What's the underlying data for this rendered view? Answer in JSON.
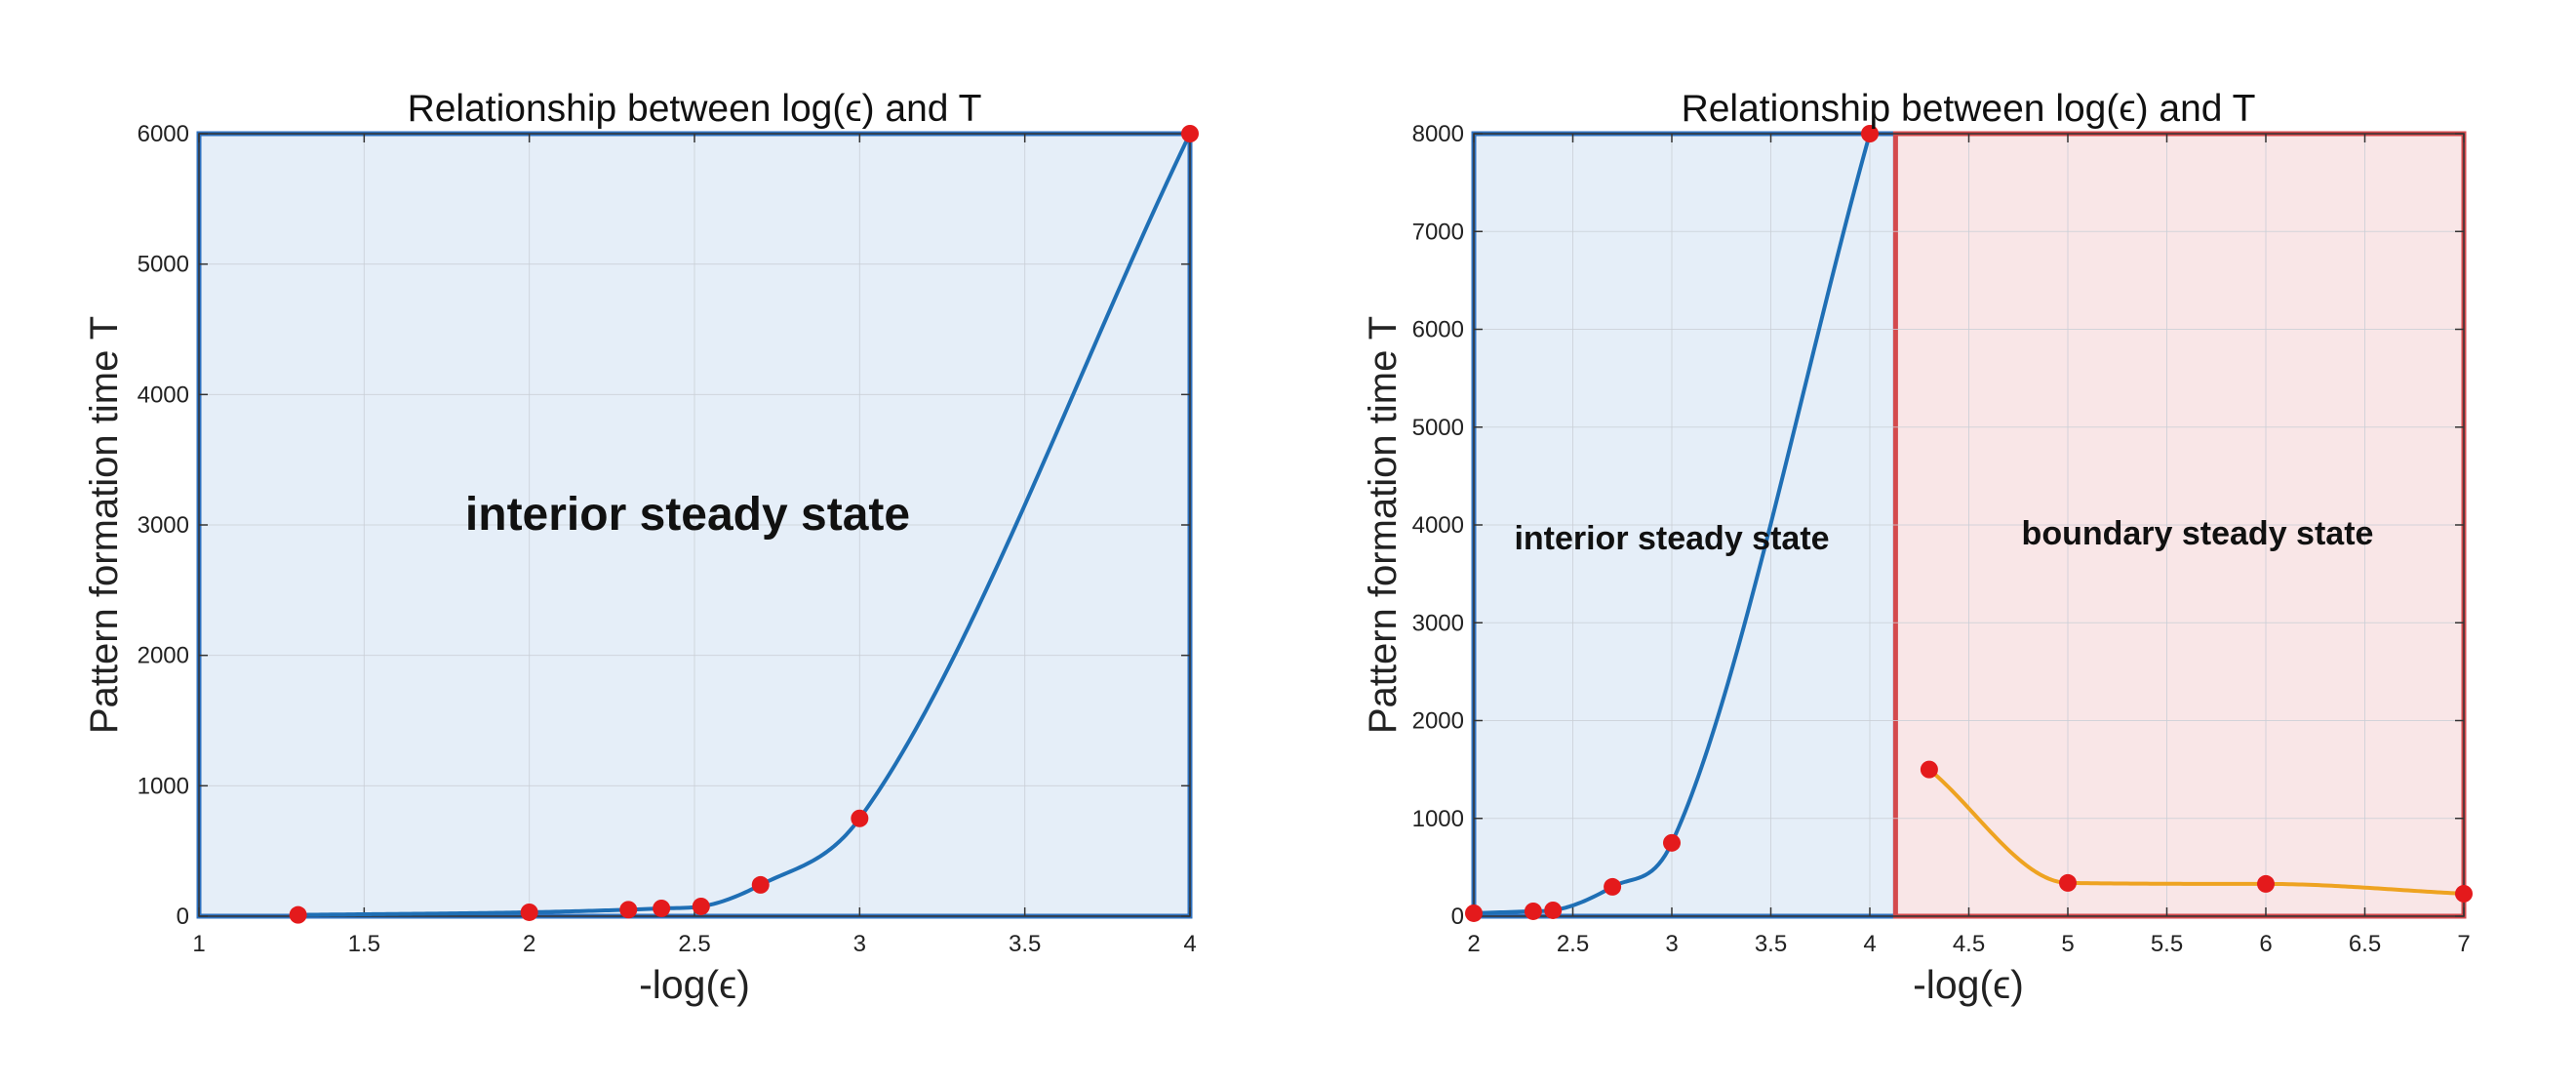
{
  "chart_data": [
    {
      "type": "line",
      "title": "Relationship between log(ϵ) and T",
      "xlabel": "-log(ϵ)",
      "ylabel": "Pattern formation time  T",
      "xlim": [
        1,
        4
      ],
      "ylim": [
        0,
        6000
      ],
      "xticks": [
        1,
        1.5,
        2,
        2.5,
        3,
        3.5,
        4
      ],
      "xtick_labels": [
        "1",
        "1.5",
        "2",
        "2.5",
        "3",
        "3.5",
        "4"
      ],
      "yticks": [
        0,
        1000,
        2000,
        3000,
        4000,
        5000,
        6000
      ],
      "ytick_labels": [
        "0",
        "1000",
        "2000",
        "3000",
        "4000",
        "5000",
        "6000"
      ],
      "grid": true,
      "series": [
        {
          "color": "#1f6fb5",
          "x": [
            1.3,
            2,
            2.3,
            2.4,
            2.52,
            2.7,
            3,
            4
          ],
          "y": [
            10,
            30,
            50,
            60,
            75,
            240,
            750,
            6000
          ]
        }
      ],
      "regions": [
        {
          "label": "interior steady state",
          "x": [
            1,
            4
          ],
          "y": [
            0,
            6000
          ],
          "fill": "#e4edf8",
          "edge": "#2f72c0"
        }
      ],
      "marker_color": "#e41a1c"
    },
    {
      "type": "line",
      "title": "Relationship between log(ϵ) and T",
      "xlabel": "-log(ϵ)",
      "ylabel": "Pattern formation time  T",
      "xlim": [
        2,
        7
      ],
      "ylim": [
        0,
        8000
      ],
      "xticks": [
        2,
        2.5,
        3,
        3.5,
        4,
        4.5,
        5,
        5.5,
        6,
        6.5,
        7
      ],
      "xtick_labels": [
        "2",
        "2.5",
        "3",
        "3.5",
        "4",
        "4.5",
        "5",
        "5.5",
        "6",
        "6.5",
        "7"
      ],
      "yticks": [
        0,
        1000,
        2000,
        3000,
        4000,
        5000,
        6000,
        7000,
        8000
      ],
      "ytick_labels": [
        "0",
        "1000",
        "2000",
        "3000",
        "4000",
        "5000",
        "6000",
        "7000",
        "8000"
      ],
      "grid": true,
      "series": [
        {
          "color": "#1f6fb5",
          "x": [
            2,
            2.3,
            2.4,
            2.7,
            3,
            4
          ],
          "y": [
            30,
            50,
            60,
            300,
            750,
            8000
          ]
        },
        {
          "color": "#eea321",
          "x": [
            4.3,
            5,
            6,
            7
          ],
          "y": [
            1500,
            340,
            330,
            230
          ]
        }
      ],
      "regions": [
        {
          "label": "interior steady state",
          "x": [
            2,
            4.13
          ],
          "y": [
            0,
            8000
          ],
          "fill": "#e4edf8",
          "edge": "#2f72c0"
        },
        {
          "label": "boundary steady state",
          "x": [
            4.13,
            7
          ],
          "y": [
            0,
            8000
          ],
          "fill": "#f9e5e6",
          "edge": "#d44a4d"
        }
      ],
      "marker_color": "#e41a1c"
    }
  ]
}
